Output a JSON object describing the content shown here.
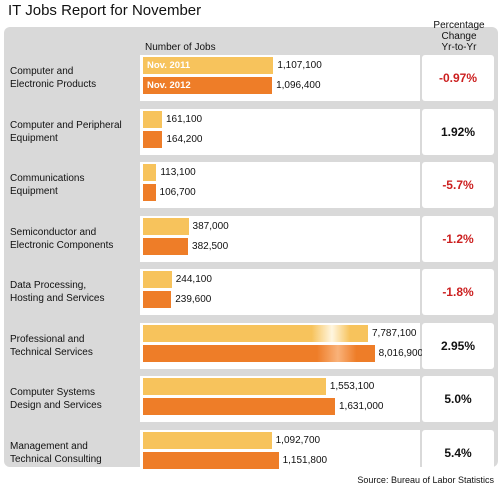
{
  "title": "IT Jobs Report for November",
  "column_header": "Number of Jobs",
  "pct_header": [
    "Percentage",
    "Change",
    "Yr-to-Yr"
  ],
  "source": "Source: Bureau of Labor Statistics",
  "colors": {
    "nov_2011": "#f7c35c",
    "nov_2012": "#ee7d28",
    "negative": "#cc1f1f"
  },
  "chart_data": {
    "type": "bar",
    "orientation": "horizontal",
    "categories": [
      [
        "Computer and",
        "Electronic Products"
      ],
      [
        "Computer and Peripheral",
        "Equipment"
      ],
      [
        "Communications",
        "Equipment"
      ],
      [
        "Semiconductor and",
        "Electronic Components"
      ],
      [
        "Data Processing,",
        "Hosting and Services"
      ],
      [
        "Professional and",
        "Technical Services"
      ],
      [
        "Computer Systems",
        "Design and Services"
      ],
      [
        "Management and",
        "Technical Consulting"
      ]
    ],
    "series": [
      {
        "name": "Nov. 2011",
        "values": [
          1107100,
          161100,
          113100,
          387000,
          244100,
          7787100,
          1553100,
          1092700
        ],
        "labels": [
          "1,107,100",
          "161,100",
          "113,100",
          "387,000",
          "244,100",
          "7,787,100",
          "1,553,100",
          "1,092,700"
        ]
      },
      {
        "name": "Nov. 2012",
        "values": [
          1096400,
          164200,
          106700,
          382500,
          239600,
          8016900,
          1631000,
          1151800
        ],
        "labels": [
          "1,096,400",
          "164,200",
          "106,700",
          "382,500",
          "239,600",
          "8,016,900",
          "1,631,000",
          "1,151,800"
        ]
      }
    ],
    "pct_change": [
      "-0.97%",
      "1.92%",
      "-5.7%",
      "-1.2%",
      "-1.8%",
      "2.95%",
      "5.0%",
      "5.4%"
    ]
  }
}
